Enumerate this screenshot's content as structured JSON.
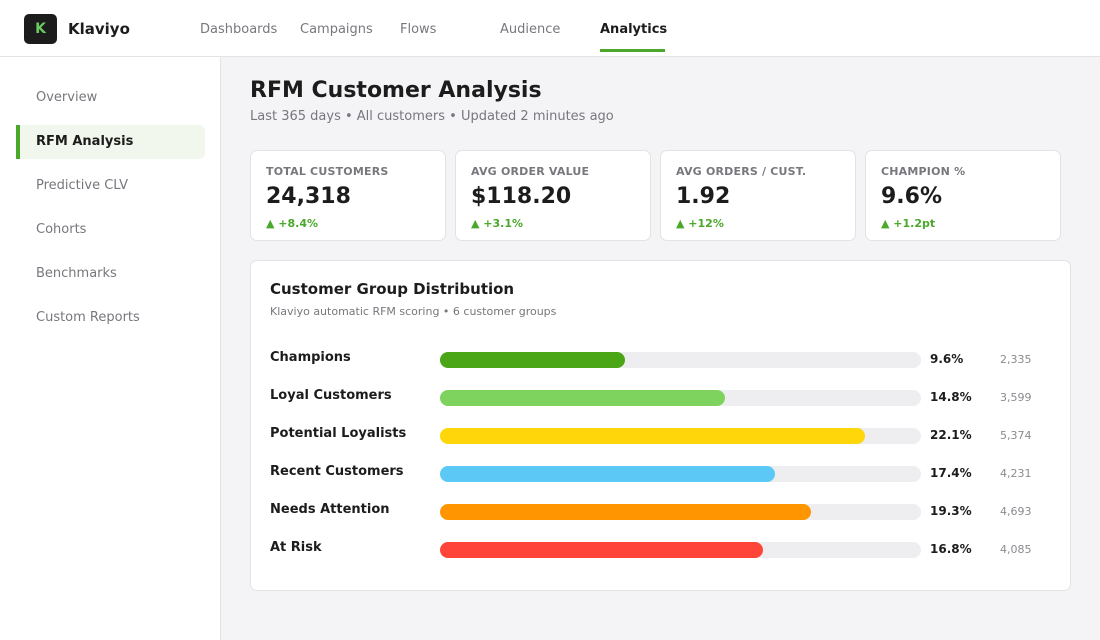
{
  "app": {
    "brand_name": "Klaviyo",
    "logo_letter": "K",
    "accent_color": "#4aa82b"
  },
  "nav": {
    "tabs": [
      {
        "label": "Dashboards",
        "active": false
      },
      {
        "label": "Campaigns",
        "active": false
      },
      {
        "label": "Flows",
        "active": false
      },
      {
        "label": "Audience",
        "active": false
      },
      {
        "label": "Analytics",
        "active": true
      }
    ]
  },
  "sidebar": {
    "items": [
      {
        "label": "Overview",
        "active": false
      },
      {
        "label": "RFM Analysis",
        "active": true
      },
      {
        "label": "Predictive CLV",
        "active": false
      },
      {
        "label": "Cohorts",
        "active": false
      },
      {
        "label": "Benchmarks",
        "active": false
      },
      {
        "label": "Custom Reports",
        "active": false
      }
    ]
  },
  "header": {
    "title": "RFM Customer Analysis",
    "subtitle": "Last 365 days  •  All customers  •  Updated 2 minutes ago"
  },
  "kpis": [
    {
      "label": "TOTAL CUSTOMERS",
      "value": "24,318",
      "delta": "▲ +8.4%"
    },
    {
      "label": "AVG ORDER VALUE",
      "value": "$118.20",
      "delta": "▲ +3.1%"
    },
    {
      "label": "AVG ORDERS / CUST.",
      "value": "1.92",
      "delta": "▲ +12%"
    },
    {
      "label": "CHAMPION %",
      "value": "9.6%",
      "delta": "▲ +1.2pt"
    }
  ],
  "distribution": {
    "title": "Customer Group Distribution",
    "subtitle": "Klaviyo automatic RFM scoring  •  6 customer groups",
    "groups": [
      {
        "name": "Champions",
        "percent": "9.6%",
        "count": "2,335",
        "bar_fill": 0.385,
        "color": "#4aa517"
      },
      {
        "name": "Loyal Customers",
        "percent": "14.8%",
        "count": "3,599",
        "bar_fill": 0.593,
        "color": "#7ed35f"
      },
      {
        "name": "Potential Loyalists",
        "percent": "22.1%",
        "count": "5,374",
        "bar_fill": 0.884,
        "color": "#ffd60a"
      },
      {
        "name": "Recent Customers",
        "percent": "17.4%",
        "count": "4,231",
        "bar_fill": 0.697,
        "color": "#5bc8f5"
      },
      {
        "name": "Needs Attention",
        "percent": "19.3%",
        "count": "4,693",
        "bar_fill": 0.772,
        "color": "#ff9500"
      },
      {
        "name": "At Risk",
        "percent": "16.8%",
        "count": "4,085",
        "bar_fill": 0.672,
        "color": "#ff453a"
      }
    ]
  }
}
